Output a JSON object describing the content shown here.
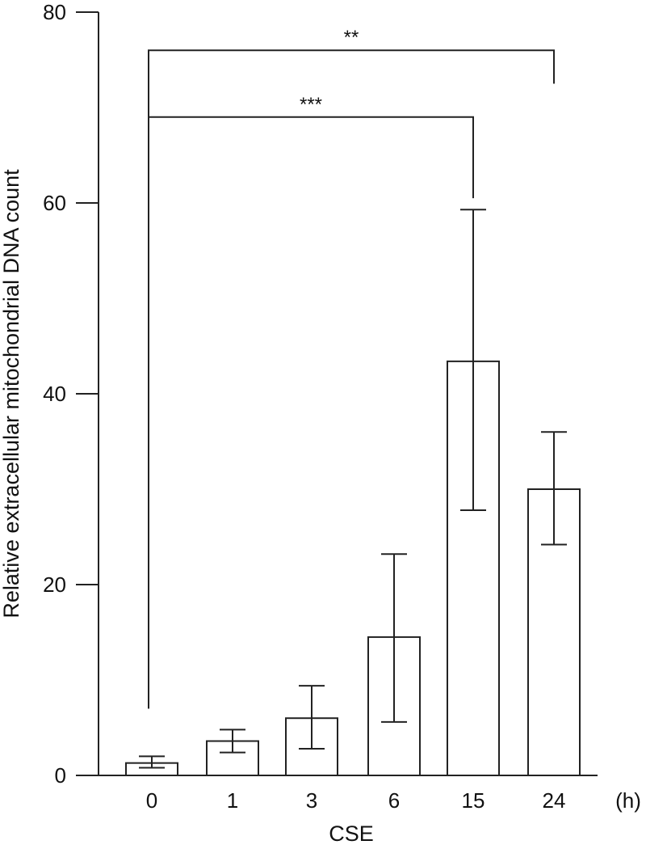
{
  "chart_data": {
    "type": "bar",
    "title": "",
    "xlabel": "CSE",
    "x_unit": "(h)",
    "ylabel": "Relative extracellular mitochondrial DNA count",
    "ylim": [
      0,
      80
    ],
    "yticks": [
      0,
      20,
      40,
      60,
      80
    ],
    "categories": [
      "0",
      "1",
      "3",
      "6",
      "15",
      "24"
    ],
    "values": [
      1.3,
      3.6,
      6.0,
      14.5,
      43.4,
      30.0
    ],
    "error_low": [
      0.8,
      2.4,
      2.8,
      5.6,
      27.8,
      24.2
    ],
    "error_high": [
      2.0,
      4.8,
      9.4,
      23.2,
      59.3,
      36.0
    ],
    "bar_fill": "#ffffff",
    "bar_stroke": "#222222",
    "grid": false,
    "legend": "none",
    "significance": [
      {
        "from_category": "0",
        "to_category": "24",
        "label": "**",
        "bracket_y": 76,
        "start_y": 7,
        "end_y": 72.5
      },
      {
        "from_category": "0",
        "to_category": "15",
        "label": "***",
        "bracket_y": 69,
        "start_y": 7,
        "end_y": 60.5
      }
    ]
  }
}
